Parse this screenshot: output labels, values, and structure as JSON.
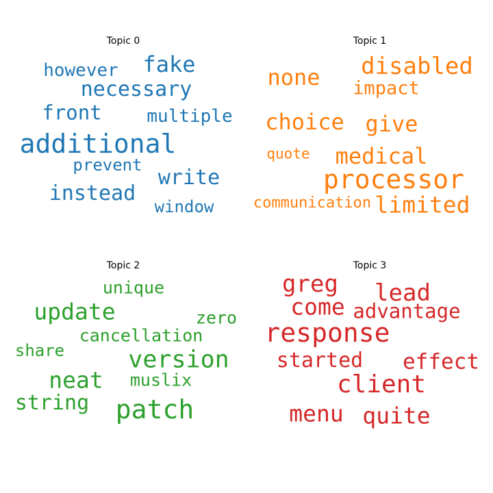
{
  "chart_data": [
    {
      "type": "wordcloud",
      "title": "Topic 0",
      "color": "#1f77b4",
      "words": [
        {
          "text": "additional",
          "weight": 1.0
        },
        {
          "text": "fake",
          "weight": 0.85
        },
        {
          "text": "necessary",
          "weight": 0.8
        },
        {
          "text": "instead",
          "weight": 0.8
        },
        {
          "text": "write",
          "weight": 0.8
        },
        {
          "text": "front",
          "weight": 0.75
        },
        {
          "text": "however",
          "weight": 0.68
        },
        {
          "text": "multiple",
          "weight": 0.68
        },
        {
          "text": "prevent",
          "weight": 0.64
        },
        {
          "text": "window",
          "weight": 0.64
        }
      ]
    },
    {
      "type": "wordcloud",
      "title": "Topic 1",
      "color": "#ff7f0e",
      "words": [
        {
          "text": "processor",
          "weight": 1.0
        },
        {
          "text": "disabled",
          "weight": 0.9
        },
        {
          "text": "limited",
          "weight": 0.87
        },
        {
          "text": "none",
          "weight": 0.84
        },
        {
          "text": "choice",
          "weight": 0.84
        },
        {
          "text": "give",
          "weight": 0.84
        },
        {
          "text": "medical",
          "weight": 0.84
        },
        {
          "text": "impact",
          "weight": 0.7
        },
        {
          "text": "communication",
          "weight": 0.58
        },
        {
          "text": "quote",
          "weight": 0.56
        }
      ]
    },
    {
      "type": "wordcloud",
      "title": "Topic 2",
      "color": "#2ca02c",
      "words": [
        {
          "text": "patch",
          "weight": 1.0
        },
        {
          "text": "version",
          "weight": 0.93
        },
        {
          "text": "update",
          "weight": 0.88
        },
        {
          "text": "neat",
          "weight": 0.88
        },
        {
          "text": "string",
          "weight": 0.78
        },
        {
          "text": "cancellation",
          "weight": 0.67
        },
        {
          "text": "unique",
          "weight": 0.67
        },
        {
          "text": "zero",
          "weight": 0.67
        },
        {
          "text": "muslix",
          "weight": 0.65
        },
        {
          "text": "share",
          "weight": 0.63
        }
      ]
    },
    {
      "type": "wordcloud",
      "title": "Topic 3",
      "color": "#d62728",
      "words": [
        {
          "text": "response",
          "weight": 1.0
        },
        {
          "text": "client",
          "weight": 0.95
        },
        {
          "text": "greg",
          "weight": 0.9
        },
        {
          "text": "lead",
          "weight": 0.9
        },
        {
          "text": "come",
          "weight": 0.88
        },
        {
          "text": "menu",
          "weight": 0.88
        },
        {
          "text": "quite",
          "weight": 0.88
        },
        {
          "text": "effect",
          "weight": 0.82
        },
        {
          "text": "started",
          "weight": 0.78
        },
        {
          "text": "advantage",
          "weight": 0.76
        }
      ]
    }
  ]
}
